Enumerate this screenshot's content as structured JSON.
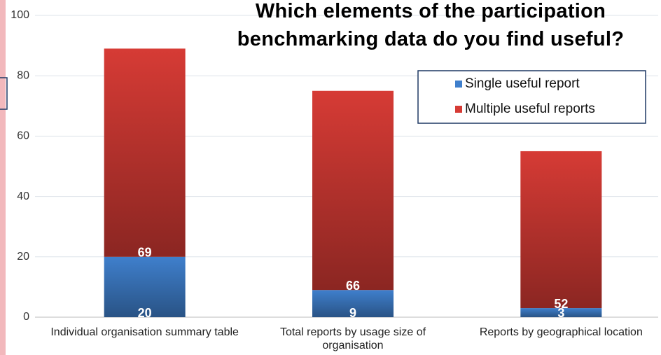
{
  "chart_data": {
    "type": "stacked_bar",
    "title": "Which elements of the participation benchmarking data do you find useful?",
    "categories": [
      "Individual organisation summary table",
      "Total reports by usage size of organisation",
      "Reports by geographical location"
    ],
    "series": [
      {
        "name": "Single useful report",
        "color": "#3f7fcc",
        "values": [
          20,
          9,
          3
        ]
      },
      {
        "name": "Multiple useful reports",
        "color": "#d63b35",
        "values": [
          69,
          66,
          52
        ]
      }
    ],
    "ylim": [
      0,
      100
    ],
    "yticks": [
      0,
      20,
      40,
      60,
      80,
      100
    ],
    "grid": true,
    "legend": "upper right"
  }
}
